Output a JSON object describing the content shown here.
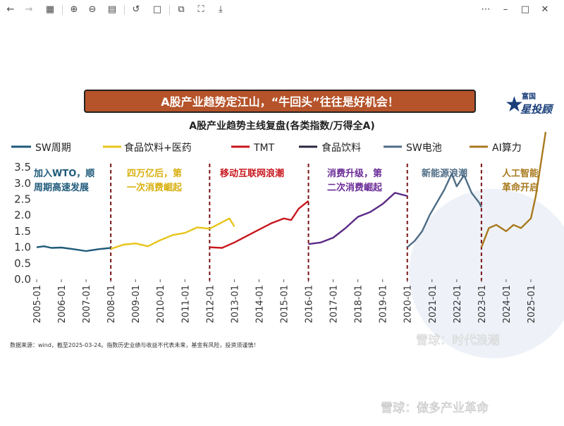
{
  "toolbar": {
    "icons": [
      "back-icon",
      "forward-icon",
      "grid-icon",
      "zoom-in-icon",
      "zoom-out-icon",
      "fit-page-icon",
      "rotate-icon",
      "crop-icon",
      "expand-icon",
      "download-icon",
      "more-icon",
      "minimize-icon",
      "maximize-icon",
      "close-icon"
    ]
  },
  "colors": {
    "banner_bg": "#b5532a",
    "sw_cycle": "#1f5a7a",
    "food_pharma": "#e8c41a",
    "tmt": "#c8161d",
    "food": "#5b2a86",
    "sw_battery": "#4f6d86",
    "ai": "#a8791e",
    "divider": "#7a1414"
  },
  "logo": {
    "top": "富国",
    "bottom": "星投顾"
  },
  "chart_data": {
    "type": "line",
    "banner": "A股产业趋势定江山，“牛回头”往往是好机会！",
    "title": "A股产业趋势主线复盘(各类指数/万得全A)",
    "legend": [
      "SW周期",
      "食品饮料+医药",
      "TMT",
      "食品饮料",
      "SW电池",
      "AI算力"
    ],
    "y_ticks": [
      "0.0",
      "0.5",
      "1.0",
      "1.5",
      "2.0",
      "2.5",
      "3.0",
      "3.5"
    ],
    "ylim": [
      0,
      3.7
    ],
    "x_ticks": [
      "2005-01",
      "2006-01",
      "2007-01",
      "2008-01",
      "2009-01",
      "2010-01",
      "2011-01",
      "2012-01",
      "2013-01",
      "2014-01",
      "2015-01",
      "2016-01",
      "2017-01",
      "2018-01",
      "2019-01",
      "2020-01",
      "2021-01",
      "2022-01",
      "2023-01",
      "2024-01",
      "2025-01"
    ],
    "xlim": [
      2005.0,
      2025.6
    ],
    "dividers": [
      2008.0,
      2012.0,
      2016.0,
      2020.0,
      2023.0
    ],
    "phase_labels": [
      {
        "line1": "加入WTO，顺",
        "line2": "周期高速发展"
      },
      {
        "line1": "四万亿后，第",
        "line2": "一次消费崛起"
      },
      {
        "line1": "移动互联网浪潮",
        "line2": ""
      },
      {
        "line1": "消费升级，第",
        "line2": "二次消费崛起"
      },
      {
        "line1": "新能源浪潮",
        "line2": ""
      },
      {
        "line1": "人工智能",
        "line2": "革命开启"
      }
    ],
    "series": [
      {
        "name": "SW周期",
        "x": [
          2005.0,
          2005.3,
          2005.6,
          2006.0,
          2006.5,
          2007.0,
          2007.5,
          2008.0
        ],
        "y": [
          1.0,
          1.03,
          0.98,
          0.99,
          0.94,
          0.88,
          0.94,
          0.98
        ]
      },
      {
        "name": "食品饮料+医药",
        "x": [
          2008.0,
          2008.5,
          2009.0,
          2009.5,
          2010.0,
          2010.5,
          2011.0,
          2011.5,
          2012.0,
          2012.5,
          2012.8,
          2013.0
        ],
        "y": [
          0.95,
          1.08,
          1.12,
          1.03,
          1.22,
          1.38,
          1.45,
          1.62,
          1.58,
          1.78,
          1.9,
          1.65
        ]
      },
      {
        "name": "TMT",
        "x": [
          2012.0,
          2012.5,
          2013.0,
          2013.5,
          2014.0,
          2014.5,
          2015.0,
          2015.3,
          2015.6,
          2016.0
        ],
        "y": [
          1.0,
          0.98,
          1.15,
          1.35,
          1.55,
          1.75,
          1.9,
          1.85,
          2.2,
          2.45
        ]
      },
      {
        "name": "食品饮料",
        "x": [
          2016.0,
          2016.5,
          2017.0,
          2017.5,
          2018.0,
          2018.5,
          2019.0,
          2019.5,
          2020.0
        ],
        "y": [
          1.1,
          1.15,
          1.3,
          1.6,
          1.95,
          2.1,
          2.35,
          2.7,
          2.6
        ]
      },
      {
        "name": "SW电池",
        "x": [
          2020.0,
          2020.3,
          2020.6,
          2020.9,
          2021.2,
          2021.5,
          2021.8,
          2022.0,
          2022.3,
          2022.6,
          2022.9,
          2023.0
        ],
        "y": [
          1.0,
          1.2,
          1.5,
          2.0,
          2.4,
          2.8,
          3.3,
          2.9,
          3.25,
          2.7,
          2.4,
          2.25
        ]
      },
      {
        "name": "AI算力",
        "x": [
          2023.0,
          2023.3,
          2023.6,
          2024.0,
          2024.3,
          2024.6,
          2025.0,
          2025.2,
          2025.4,
          2025.6
        ],
        "y": [
          1.0,
          1.6,
          1.7,
          1.5,
          1.7,
          1.6,
          1.9,
          2.6,
          3.6,
          4.6
        ]
      }
    ]
  },
  "source_note": "数据来源：wind，截至2025-03-24。指数历史业绩与收益不代表未来，基金有风险，投资须谨慎！",
  "watermarks": {
    "mid": "雪球：时代浪潮",
    "bottom": "雪球：做多产业革命"
  }
}
